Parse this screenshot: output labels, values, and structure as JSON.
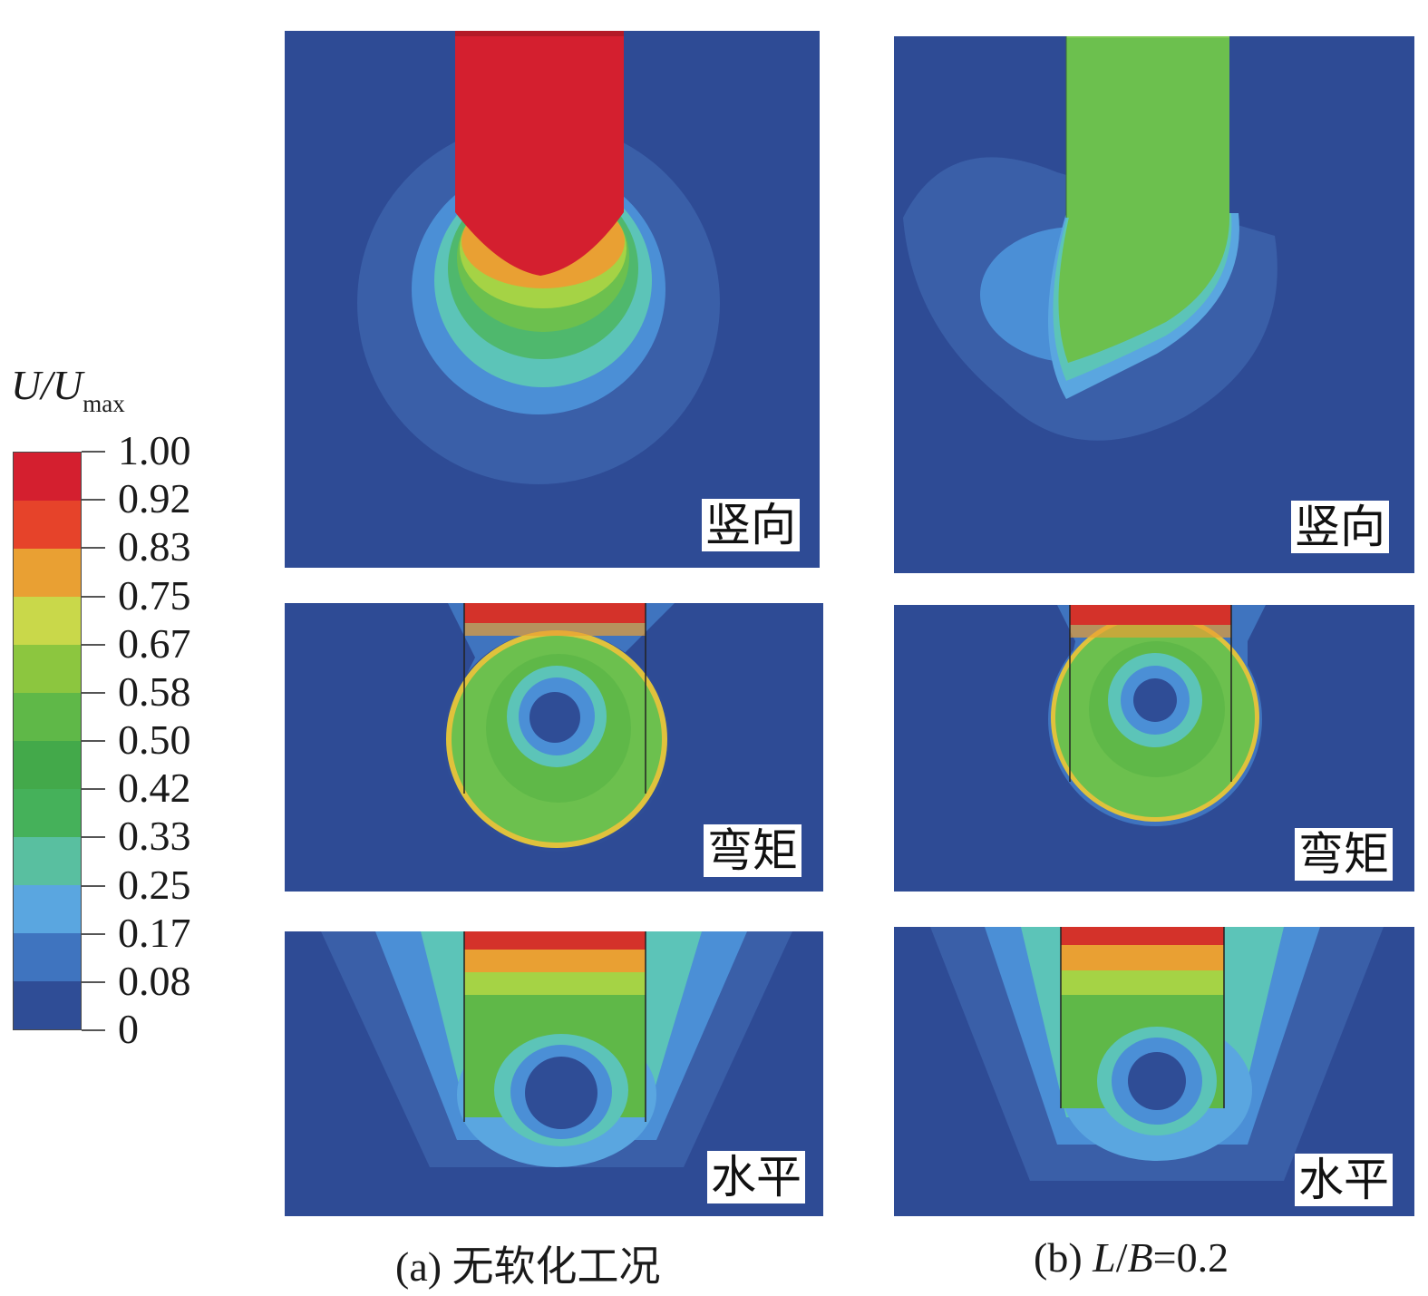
{
  "legend": {
    "title_main": "U/U",
    "title_sub": "max",
    "ticks": [
      "1.00",
      "0.92",
      "0.83",
      "0.75",
      "0.67",
      "0.58",
      "0.50",
      "0.42",
      "0.33",
      "0.25",
      "0.17",
      "0.08",
      "0"
    ],
    "colors": [
      "#d41f2f",
      "#e6432a",
      "#e9a033",
      "#c9d84a",
      "#8cc63f",
      "#5fb848",
      "#43a94a",
      "#45b15a",
      "#59bfa0",
      "#5aa6e0",
      "#3f74bf",
      "#2f4d96"
    ]
  },
  "panels": {
    "a_vertical": {
      "label": "竖向"
    },
    "a_moment": {
      "label": "弯矩"
    },
    "a_horizontal": {
      "label": "水平"
    },
    "b_vertical": {
      "label": "竖向"
    },
    "b_moment": {
      "label": "弯矩"
    },
    "b_horizontal": {
      "label": "水平"
    }
  },
  "captions": {
    "a": "(a) 无软化工况",
    "b_prefix": "(b) ",
    "b_L": "L",
    "b_slash": "/",
    "b_B": "B",
    "b_suffix": "=0.2"
  }
}
